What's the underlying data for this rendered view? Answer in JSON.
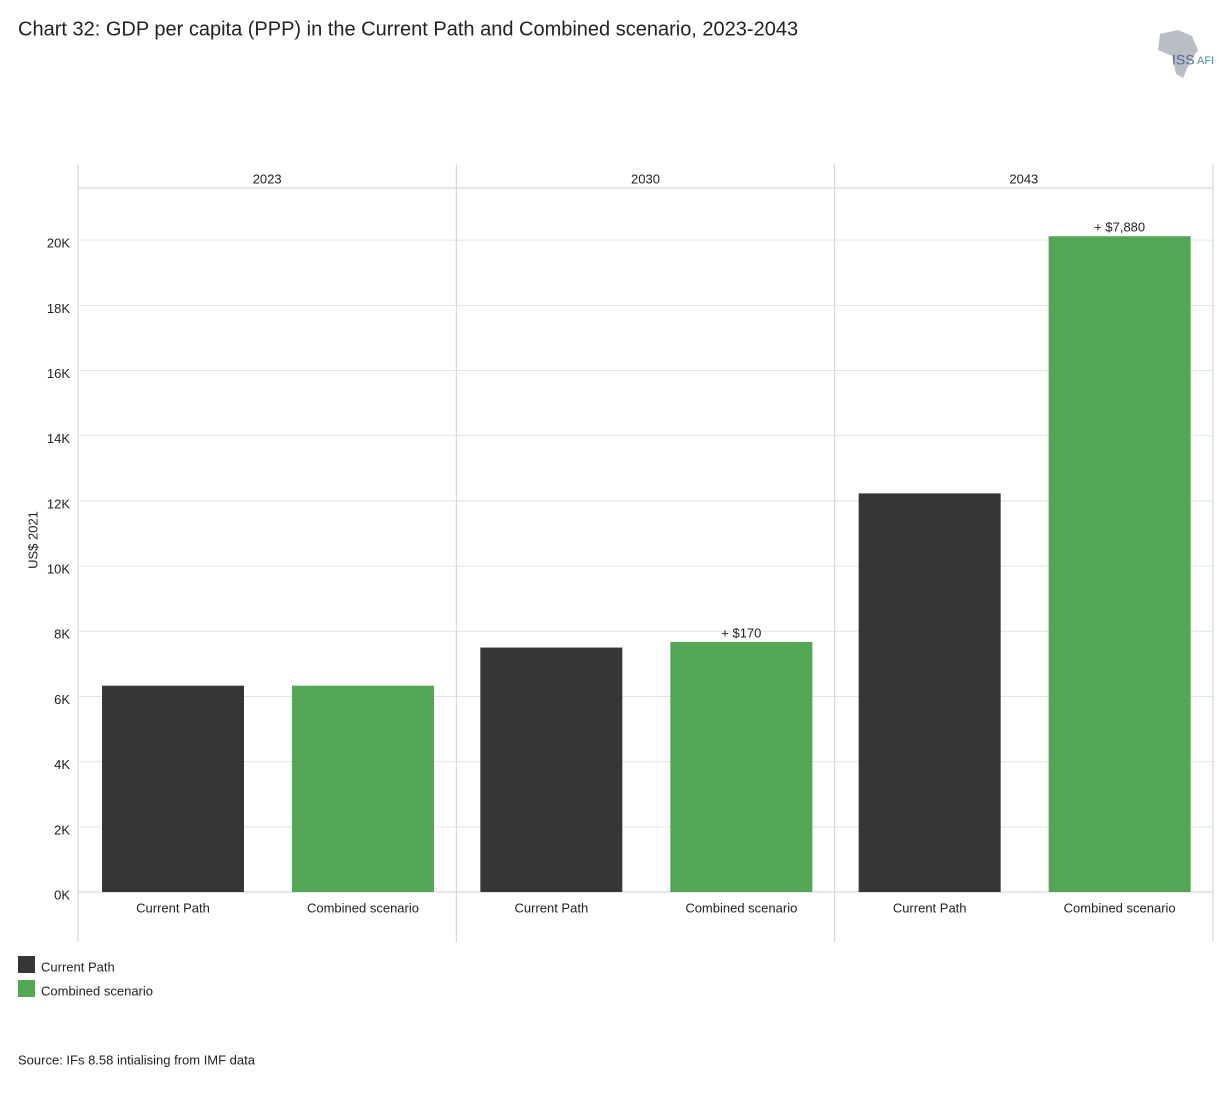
{
  "chart_data": {
    "type": "bar",
    "title": "Chart 32: GDP per capita (PPP) in the Current Path and Combined scenario, 2023-2043",
    "y_label": "US$ 2021",
    "categories": [
      "2023",
      "2030",
      "2043"
    ],
    "series": [
      {
        "name": "Current Path",
        "color": "#363636",
        "values": [
          6330,
          7500,
          12230
        ]
      },
      {
        "name": "Combined scenario",
        "color": "#53a655",
        "values": [
          6330,
          7670,
          20120
        ],
        "annotations": [
          null,
          "+ $170",
          "+ $7,880"
        ]
      }
    ],
    "ylim": [
      0,
      21600
    ],
    "yticks": [
      {
        "value": 0,
        "label": "0K"
      },
      {
        "value": 2000,
        "label": "2K"
      },
      {
        "value": 4000,
        "label": "4K"
      },
      {
        "value": 6000,
        "label": "6K"
      },
      {
        "value": 8000,
        "label": "8K"
      },
      {
        "value": 10000,
        "label": "10K"
      },
      {
        "value": 12000,
        "label": "12K"
      },
      {
        "value": 14000,
        "label": "14K"
      },
      {
        "value": 16000,
        "label": "16K"
      },
      {
        "value": 18000,
        "label": "18K"
      },
      {
        "value": 20000,
        "label": "20K"
      }
    ],
    "grid": true,
    "legend": "bottom-left",
    "source": "Source: IFs 8.58 intialising from IMF data",
    "logo": [
      "ISS",
      "AFI"
    ]
  }
}
